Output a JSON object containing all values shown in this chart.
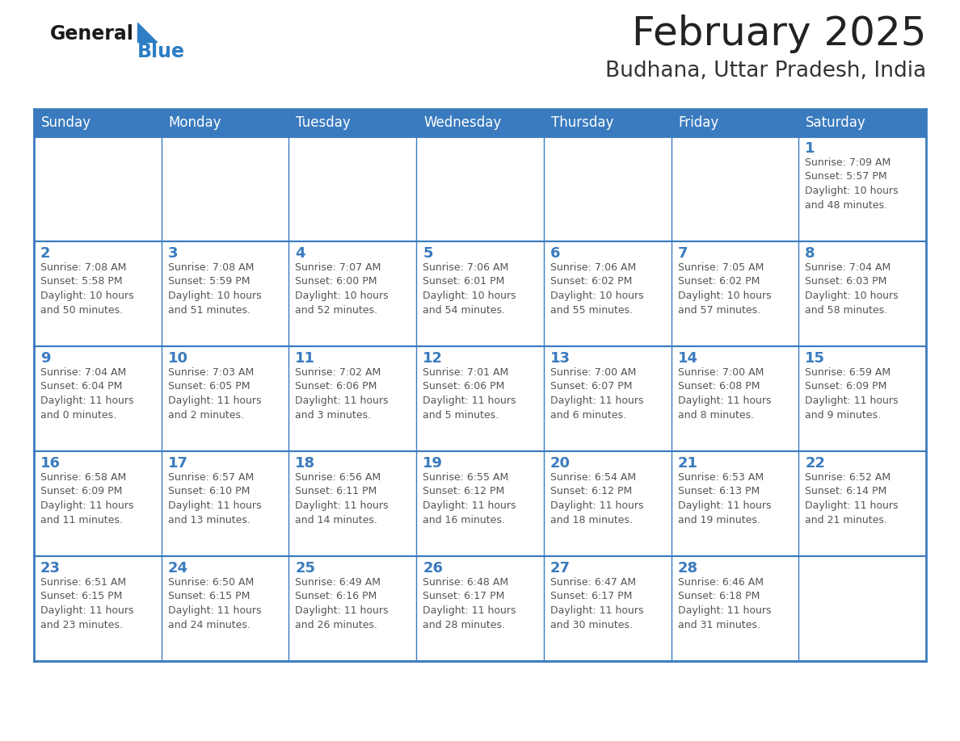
{
  "title": "February 2025",
  "subtitle": "Budhana, Uttar Pradesh, India",
  "header_color": "#3a7bbf",
  "header_text_color": "#ffffff",
  "cell_bg_color": "#ffffff",
  "cell_border_color": "#3a7bbf",
  "day_number_color": "#3a7bbf",
  "cell_text_color": "#555555",
  "days_of_week": [
    "Sunday",
    "Monday",
    "Tuesday",
    "Wednesday",
    "Thursday",
    "Friday",
    "Saturday"
  ],
  "title_color": "#222222",
  "subtitle_color": "#333333",
  "logo_general_color": "#1a1a1a",
  "logo_blue_color": "#2d7ec4",
  "grid_line_color": "#3a7bbf",
  "calendar_data": [
    [
      {
        "day": "",
        "info": ""
      },
      {
        "day": "",
        "info": ""
      },
      {
        "day": "",
        "info": ""
      },
      {
        "day": "",
        "info": ""
      },
      {
        "day": "",
        "info": ""
      },
      {
        "day": "",
        "info": ""
      },
      {
        "day": "1",
        "info": "Sunrise: 7:09 AM\nSunset: 5:57 PM\nDaylight: 10 hours\nand 48 minutes."
      }
    ],
    [
      {
        "day": "2",
        "info": "Sunrise: 7:08 AM\nSunset: 5:58 PM\nDaylight: 10 hours\nand 50 minutes."
      },
      {
        "day": "3",
        "info": "Sunrise: 7:08 AM\nSunset: 5:59 PM\nDaylight: 10 hours\nand 51 minutes."
      },
      {
        "day": "4",
        "info": "Sunrise: 7:07 AM\nSunset: 6:00 PM\nDaylight: 10 hours\nand 52 minutes."
      },
      {
        "day": "5",
        "info": "Sunrise: 7:06 AM\nSunset: 6:01 PM\nDaylight: 10 hours\nand 54 minutes."
      },
      {
        "day": "6",
        "info": "Sunrise: 7:06 AM\nSunset: 6:02 PM\nDaylight: 10 hours\nand 55 minutes."
      },
      {
        "day": "7",
        "info": "Sunrise: 7:05 AM\nSunset: 6:02 PM\nDaylight: 10 hours\nand 57 minutes."
      },
      {
        "day": "8",
        "info": "Sunrise: 7:04 AM\nSunset: 6:03 PM\nDaylight: 10 hours\nand 58 minutes."
      }
    ],
    [
      {
        "day": "9",
        "info": "Sunrise: 7:04 AM\nSunset: 6:04 PM\nDaylight: 11 hours\nand 0 minutes."
      },
      {
        "day": "10",
        "info": "Sunrise: 7:03 AM\nSunset: 6:05 PM\nDaylight: 11 hours\nand 2 minutes."
      },
      {
        "day": "11",
        "info": "Sunrise: 7:02 AM\nSunset: 6:06 PM\nDaylight: 11 hours\nand 3 minutes."
      },
      {
        "day": "12",
        "info": "Sunrise: 7:01 AM\nSunset: 6:06 PM\nDaylight: 11 hours\nand 5 minutes."
      },
      {
        "day": "13",
        "info": "Sunrise: 7:00 AM\nSunset: 6:07 PM\nDaylight: 11 hours\nand 6 minutes."
      },
      {
        "day": "14",
        "info": "Sunrise: 7:00 AM\nSunset: 6:08 PM\nDaylight: 11 hours\nand 8 minutes."
      },
      {
        "day": "15",
        "info": "Sunrise: 6:59 AM\nSunset: 6:09 PM\nDaylight: 11 hours\nand 9 minutes."
      }
    ],
    [
      {
        "day": "16",
        "info": "Sunrise: 6:58 AM\nSunset: 6:09 PM\nDaylight: 11 hours\nand 11 minutes."
      },
      {
        "day": "17",
        "info": "Sunrise: 6:57 AM\nSunset: 6:10 PM\nDaylight: 11 hours\nand 13 minutes."
      },
      {
        "day": "18",
        "info": "Sunrise: 6:56 AM\nSunset: 6:11 PM\nDaylight: 11 hours\nand 14 minutes."
      },
      {
        "day": "19",
        "info": "Sunrise: 6:55 AM\nSunset: 6:12 PM\nDaylight: 11 hours\nand 16 minutes."
      },
      {
        "day": "20",
        "info": "Sunrise: 6:54 AM\nSunset: 6:12 PM\nDaylight: 11 hours\nand 18 minutes."
      },
      {
        "day": "21",
        "info": "Sunrise: 6:53 AM\nSunset: 6:13 PM\nDaylight: 11 hours\nand 19 minutes."
      },
      {
        "day": "22",
        "info": "Sunrise: 6:52 AM\nSunset: 6:14 PM\nDaylight: 11 hours\nand 21 minutes."
      }
    ],
    [
      {
        "day": "23",
        "info": "Sunrise: 6:51 AM\nSunset: 6:15 PM\nDaylight: 11 hours\nand 23 minutes."
      },
      {
        "day": "24",
        "info": "Sunrise: 6:50 AM\nSunset: 6:15 PM\nDaylight: 11 hours\nand 24 minutes."
      },
      {
        "day": "25",
        "info": "Sunrise: 6:49 AM\nSunset: 6:16 PM\nDaylight: 11 hours\nand 26 minutes."
      },
      {
        "day": "26",
        "info": "Sunrise: 6:48 AM\nSunset: 6:17 PM\nDaylight: 11 hours\nand 28 minutes."
      },
      {
        "day": "27",
        "info": "Sunrise: 6:47 AM\nSunset: 6:17 PM\nDaylight: 11 hours\nand 30 minutes."
      },
      {
        "day": "28",
        "info": "Sunrise: 6:46 AM\nSunset: 6:18 PM\nDaylight: 11 hours\nand 31 minutes."
      },
      {
        "day": "",
        "info": ""
      }
    ]
  ]
}
